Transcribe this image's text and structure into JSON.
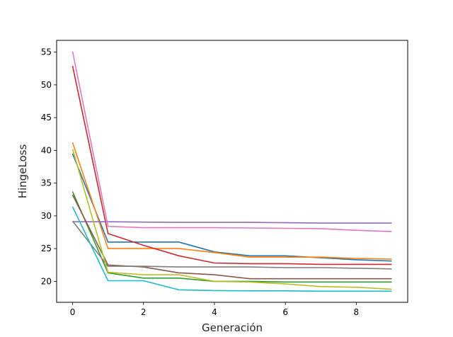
{
  "chart_data": {
    "type": "line",
    "title": "",
    "xlabel": "Generación",
    "ylabel": "HingeLoss",
    "xlim": [
      -0.45,
      9.45
    ],
    "ylim": [
      16.8,
      56.8
    ],
    "xticks": [
      0,
      2,
      4,
      6,
      8
    ],
    "yticks": [
      20,
      25,
      30,
      35,
      40,
      45,
      50,
      55
    ],
    "grid": false,
    "legend": "none",
    "x": [
      0,
      1,
      2,
      3,
      4,
      5,
      6,
      7,
      8,
      9
    ],
    "series": [
      {
        "color": "#1f77b4",
        "values": [
          39.5,
          26.0,
          26.0,
          26.0,
          24.5,
          23.9,
          23.9,
          23.6,
          23.3,
          23.1
        ]
      },
      {
        "color": "#ff7f0e",
        "values": [
          41.2,
          25.0,
          25.0,
          25.0,
          24.4,
          23.7,
          23.7,
          23.7,
          23.5,
          23.4
        ]
      },
      {
        "color": "#2ca02c",
        "values": [
          33.7,
          21.3,
          20.5,
          20.5,
          20.0,
          20.0,
          19.9,
          19.9,
          19.9,
          19.9
        ]
      },
      {
        "color": "#d62728",
        "values": [
          52.9,
          27.3,
          25.5,
          23.9,
          22.8,
          22.7,
          22.7,
          22.6,
          22.6,
          22.6
        ]
      },
      {
        "color": "#9467bd",
        "values": [
          29.1,
          29.1,
          29.05,
          29.0,
          29.0,
          29.0,
          28.95,
          28.9,
          28.9,
          28.9
        ]
      },
      {
        "color": "#8c564b",
        "values": [
          33.2,
          22.5,
          22.2,
          21.3,
          21.0,
          20.4,
          20.4,
          20.4,
          20.4,
          20.4
        ]
      },
      {
        "color": "#e377c2",
        "values": [
          55.1,
          28.4,
          28.2,
          28.2,
          28.2,
          28.15,
          28.1,
          28.05,
          27.8,
          27.6
        ]
      },
      {
        "color": "#7f7f7f",
        "values": [
          29.2,
          22.3,
          22.3,
          22.2,
          22.2,
          22.2,
          22.1,
          22.1,
          22.0,
          21.9
        ]
      },
      {
        "color": "#bcbd22",
        "values": [
          40.2,
          21.4,
          21.0,
          21.0,
          20.0,
          19.9,
          19.6,
          19.2,
          19.1,
          18.8
        ]
      },
      {
        "color": "#17becf",
        "values": [
          31.4,
          20.1,
          20.1,
          18.7,
          18.6,
          18.55,
          18.55,
          18.5,
          18.5,
          18.5
        ]
      }
    ]
  }
}
